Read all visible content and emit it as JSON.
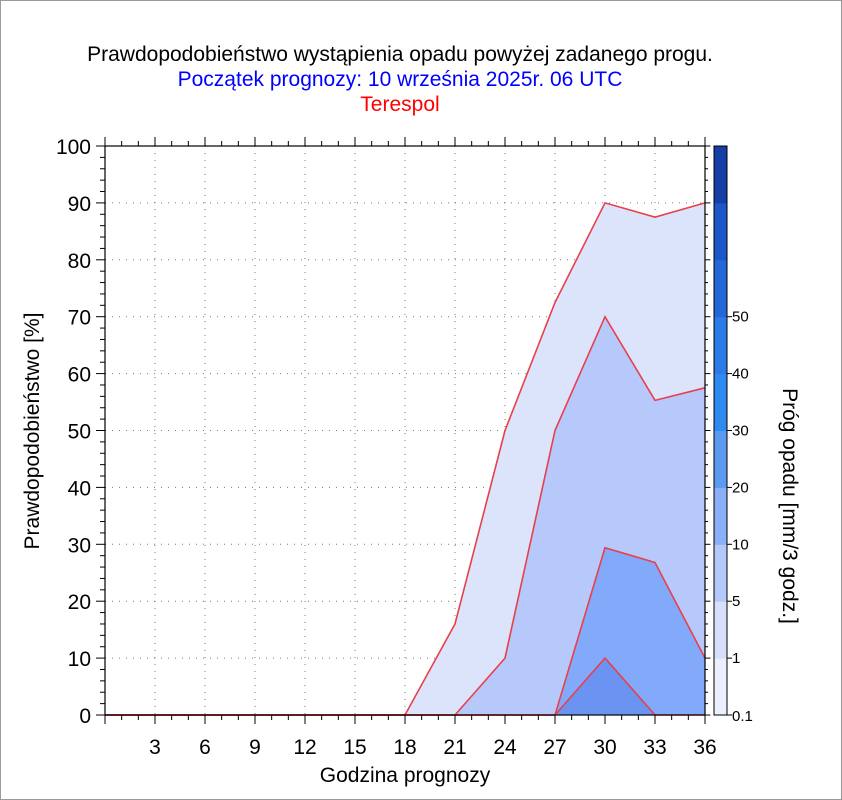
{
  "chart_data": {
    "type": "area",
    "title": "Prawdopodobieństwo wystąpienia opadu powyżej zadanego progu.",
    "subtitle": "Początek prognozy: 10 września 2025r. 06 UTC",
    "location": "Terespol",
    "xlabel": "Godzina prognozy",
    "ylabel": "Prawdopodobieństwo [%]",
    "colorbar_label": "Próg opadu [mm/3 godz.]",
    "x": [
      0,
      3,
      6,
      9,
      12,
      15,
      18,
      21,
      24,
      27,
      30,
      33,
      36
    ],
    "xlim": [
      0,
      36
    ],
    "ylim": [
      0,
      100
    ],
    "x_ticks": [
      "3",
      "6",
      "9",
      "12",
      "15",
      "18",
      "21",
      "24",
      "27",
      "30",
      "33",
      "36"
    ],
    "y_ticks": [
      "0",
      "10",
      "20",
      "30",
      "40",
      "50",
      "60",
      "70",
      "80",
      "90",
      "100"
    ],
    "grid": true,
    "series": [
      {
        "name": "0.1",
        "color": "#dce4fc",
        "values": [
          0,
          0,
          0,
          0,
          0,
          0,
          0,
          16,
          50,
          72.5,
          90,
          87.5,
          90
        ]
      },
      {
        "name": "1",
        "color": "#b7c8fa",
        "values": [
          0,
          0,
          0,
          0,
          0,
          0,
          0,
          0,
          10,
          50,
          70,
          55.3,
          57.5
        ]
      },
      {
        "name": "5",
        "color": "#83a9fa",
        "values": [
          0,
          0,
          0,
          0,
          0,
          0,
          0,
          0,
          0,
          0,
          29.4,
          26.8,
          10
        ]
      },
      {
        "name": "10",
        "color": "#6a93f2",
        "values": [
          0,
          0,
          0,
          0,
          0,
          0,
          0,
          0,
          0,
          0,
          10,
          0,
          0
        ]
      }
    ],
    "colorbar": {
      "ticks": [
        "0.1",
        "1",
        "5",
        "10",
        "20",
        "30",
        "40",
        "50"
      ],
      "colors": [
        "#eceffd",
        "#d6e0fb",
        "#b4c8f9",
        "#8ab0f7",
        "#5c9af2",
        "#2f8af0",
        "#2a7ae8",
        "#2468d8",
        "#1d56c6",
        "#153fa6"
      ]
    },
    "colors": {
      "title": "#000000",
      "subtitle": "#0000ff",
      "location": "#ff0000",
      "outline": "#e8404a"
    }
  }
}
